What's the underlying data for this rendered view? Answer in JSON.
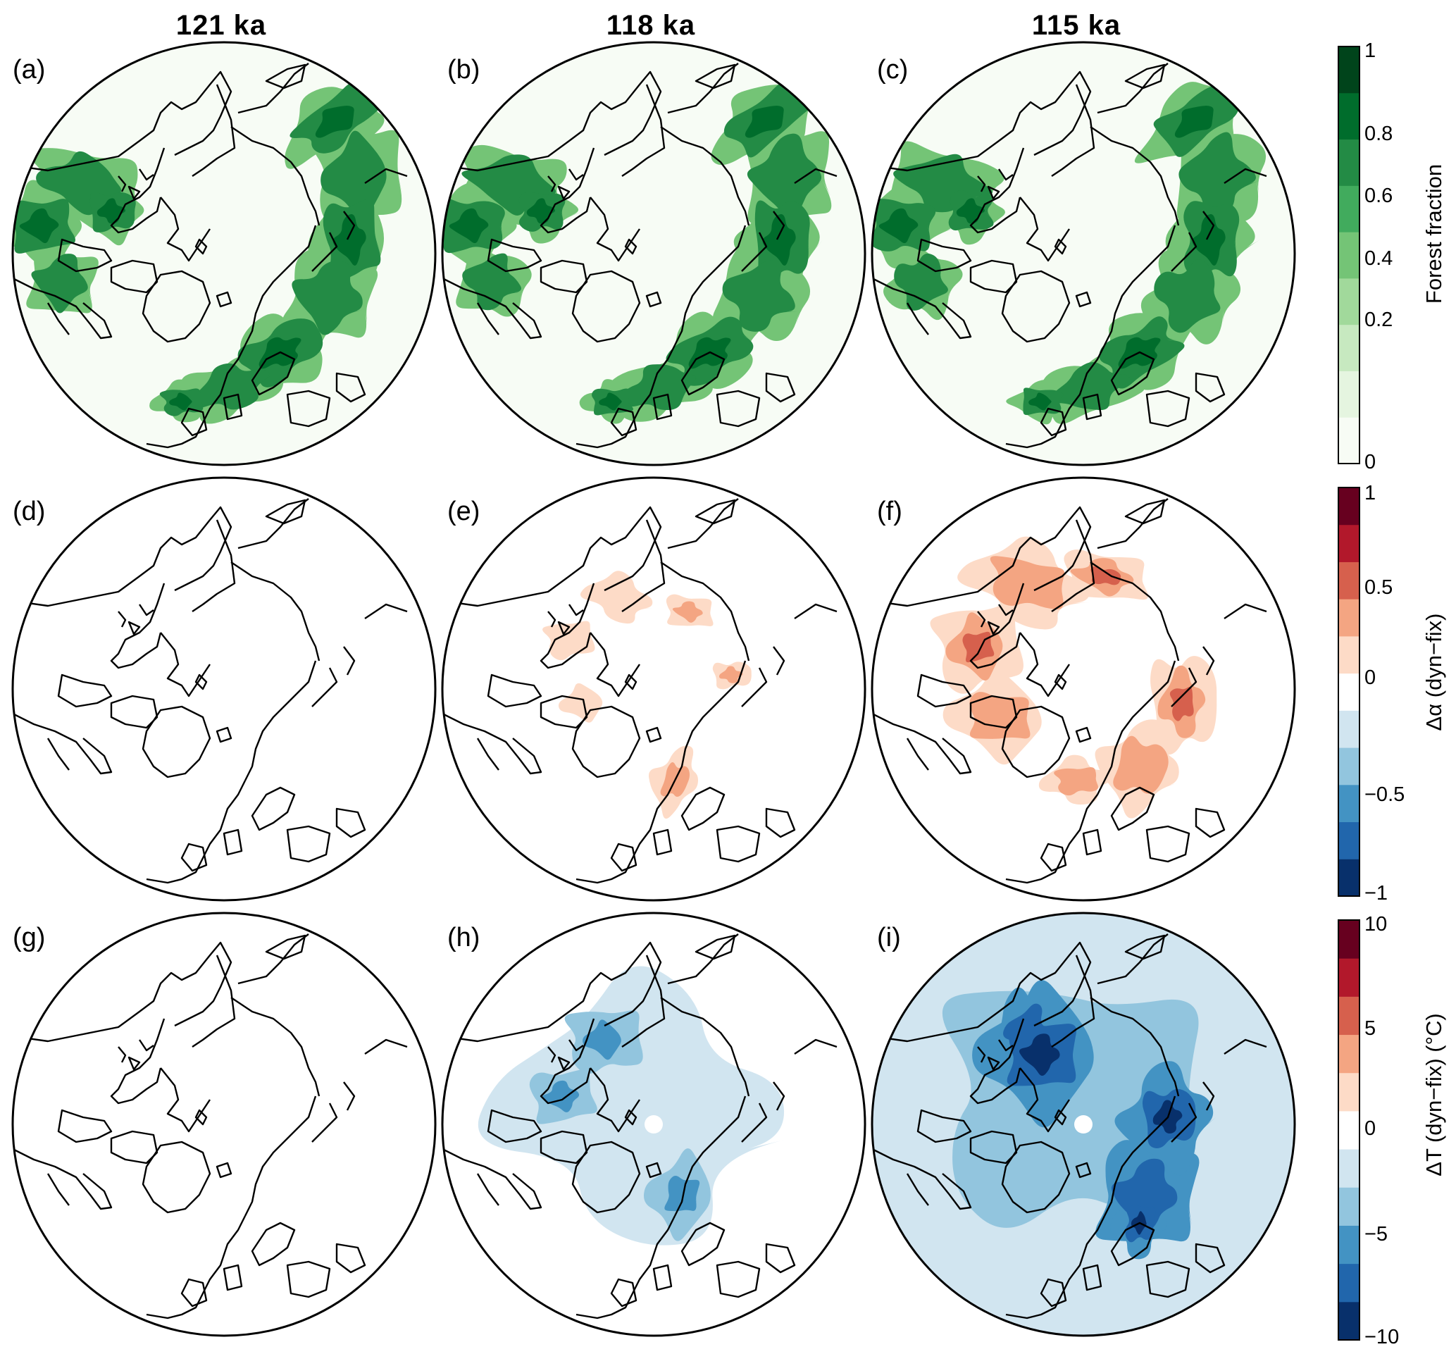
{
  "colors": {
    "forest": [
      "#f7fcf5",
      "#e5f5e0",
      "#c7e9c0",
      "#a1d99b",
      "#74c476",
      "#41ab5d",
      "#238b45",
      "#006d2c",
      "#00441b"
    ],
    "albedo": [
      "#08306b",
      "#2166ac",
      "#4393c3",
      "#92c5de",
      "#d1e5f0",
      "#ffffff",
      "#fddbc7",
      "#f4a582",
      "#d6604d",
      "#b2182b",
      "#67001f"
    ],
    "temp": [
      "#08306b",
      "#2166ac",
      "#4393c3",
      "#92c5de",
      "#d1e5f0",
      "#ffffff",
      "#fddbc7",
      "#f4a582",
      "#d6604d",
      "#b2182b",
      "#67001f"
    ],
    "coast": "#000000"
  },
  "chart_data": {
    "type": "heatmap",
    "projection": "north polar stereographic",
    "columns": [
      "121 ka",
      "118 ka",
      "115 ka"
    ],
    "rows": [
      {
        "variable": "Forest fraction",
        "panels": [
          "(a)",
          "(b)",
          "(c)"
        ],
        "colorbar": {
          "label": "Forest fraction",
          "range": [
            0,
            1
          ],
          "ticks": [
            "1",
            "0.8",
            "0.6",
            "0.4",
            "0.2",
            "0"
          ]
        },
        "note": "boreal forest belt ~0.6-1.0 across Eurasia and North America in all three time slices"
      },
      {
        "variable": "Δα (dyn−fix)",
        "panels": [
          "(d)",
          "(e)",
          "(f)"
        ],
        "colorbar": {
          "label": "Δα (dyn−fix)",
          "range": [
            -1,
            1
          ],
          "ticks": [
            "1",
            "0.5",
            "0",
            "−0.5",
            "−1"
          ]
        },
        "note": "zero at 121 ka; positive ~0.1-0.4 at 118 ka and 115 ka over high-latitude land"
      },
      {
        "variable": "ΔT (dyn−fix) (°C)",
        "panels": [
          "(g)",
          "(h)",
          "(i)"
        ],
        "colorbar": {
          "label": "ΔT (dyn−fix) (°C)",
          "range": [
            -10,
            10
          ],
          "ticks": [
            "10",
            "5",
            "0",
            "−5",
            "−10"
          ]
        },
        "note": "zero at 121 ka; cooling to about −5 °C at 118 ka and below −8 °C at 115 ka"
      }
    ]
  }
}
